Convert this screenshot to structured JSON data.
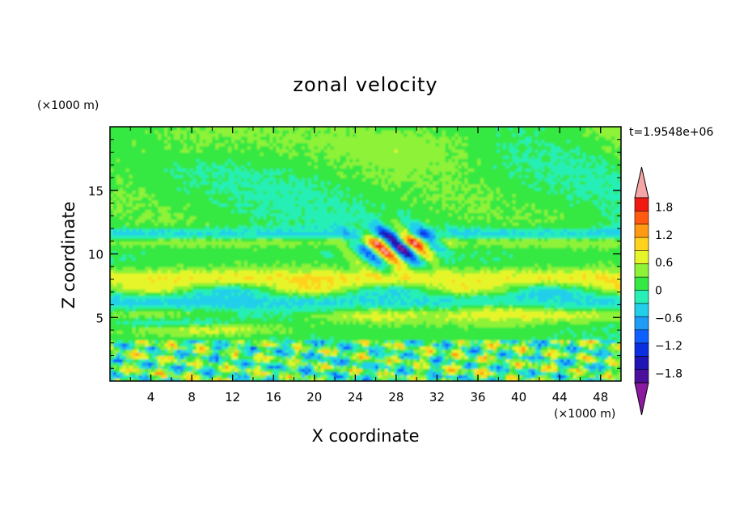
{
  "chart_data": {
    "type": "heatmap",
    "title": "zonal velocity",
    "xlabel": "X coordinate",
    "ylabel": "Z coordinate",
    "x_unit": "(×1000 m)",
    "y_unit": "(×1000 m)",
    "time_label": "t=1.9548e+06",
    "xlim": [
      0,
      50
    ],
    "ylim": [
      0,
      20
    ],
    "xticks": [
      "4",
      "8",
      "12",
      "16",
      "20",
      "24",
      "28",
      "32",
      "36",
      "40",
      "44",
      "48"
    ],
    "xtick_values": [
      4,
      8,
      12,
      16,
      20,
      24,
      28,
      32,
      36,
      40,
      44,
      48
    ],
    "yticks": [
      "5",
      "10",
      "15"
    ],
    "ytick_values": [
      5,
      10,
      15
    ],
    "colorbar": {
      "levels": [
        -2.0,
        -1.8,
        -1.5,
        -1.2,
        -0.9,
        -0.6,
        -0.3,
        0,
        0.3,
        0.6,
        0.9,
        1.2,
        1.5,
        1.8,
        2.0
      ],
      "colors": [
        "#4b0f9b",
        "#1f14b4",
        "#0a2ee0",
        "#1060ff",
        "#1f9cf5",
        "#22cfea",
        "#27efb6",
        "#35e843",
        "#8df238",
        "#e6f52a",
        "#ffd21e",
        "#ff9a14",
        "#ff5a10",
        "#ef1a12"
      ],
      "tick_labels": [
        "1.8",
        "1.2",
        "0.6",
        "0",
        "−0.6",
        "−1.2",
        "−1.8"
      ],
      "tick_values": [
        1.8,
        1.2,
        0.6,
        0,
        -0.6,
        -1.2,
        -1.8
      ],
      "extend_high_color": "#f5a6a6",
      "extend_low_color": "#8a1a9e"
    },
    "field_features": [
      {
        "z": 11,
        "x": 28,
        "note": "strong positive/negative core"
      },
      {
        "z": 8,
        "x": 25,
        "note": "positive band"
      },
      {
        "z": 5,
        "x": 25,
        "note": "mixed positive/negative band"
      },
      {
        "z": 1,
        "x": 25,
        "note": "small-scale noisy layer"
      }
    ]
  }
}
